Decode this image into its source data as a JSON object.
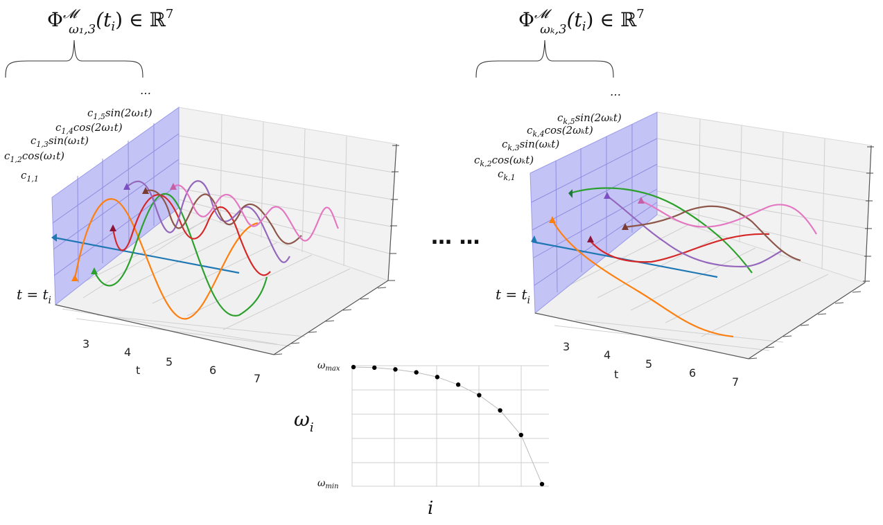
{
  "panels": [
    {
      "id": "left",
      "header": "Φ^M_{ω1,3}(ti) ∈ ℝ^7",
      "header_main": "Φ",
      "header_sup": "𝓜",
      "header_sub": "ω₁,3",
      "header_arg": "(t",
      "header_arg_sub": "i",
      "header_tail": ") ∈ ℝ",
      "header_tail_sup": "7",
      "ellipsis": "…",
      "basis_labels": [
        {
          "c": "c",
          "sub": "1,5",
          "fn": "sin(2ω₁t)"
        },
        {
          "c": "c",
          "sub": "1,4",
          "fn": "cos(2ω₁t)"
        },
        {
          "c": "c",
          "sub": "1,3",
          "fn": "sin(ω₁t)"
        },
        {
          "c": "c",
          "sub": "1,2",
          "fn": "cos(ω₁t)"
        },
        {
          "c": "c",
          "sub": "1,1",
          "fn": ""
        }
      ],
      "t_label_main": "t = t",
      "t_label_sub": "i",
      "x_ticks": [
        "3",
        "4",
        "5",
        "6",
        "7"
      ],
      "x_axis_label": "t"
    },
    {
      "id": "right",
      "header_main": "Φ",
      "header_sup": "𝓜",
      "header_sub": "ωₖ,3",
      "header_arg": "(t",
      "header_arg_sub": "i",
      "header_tail": ") ∈ ℝ",
      "header_tail_sup": "7",
      "ellipsis": "…",
      "basis_labels": [
        {
          "c": "c",
          "sub": "k,5",
          "fn": "sin(2ωₖt)"
        },
        {
          "c": "c",
          "sub": "k,4",
          "fn": "cos(2ωₖt)"
        },
        {
          "c": "c",
          "sub": "k,3",
          "fn": "sin(ωₖt)"
        },
        {
          "c": "c",
          "sub": "k,2",
          "fn": "cos(ωₖt)"
        },
        {
          "c": "c",
          "sub": "k,1",
          "fn": ""
        }
      ],
      "t_label_main": "t = t",
      "t_label_sub": "i",
      "x_ticks": [
        "3",
        "4",
        "5",
        "6",
        "7"
      ],
      "x_axis_label": "t"
    }
  ],
  "middle_ellipsis": "… …",
  "freq_plot": {
    "y_label": "ω",
    "y_label_sub": "i",
    "x_label": "i",
    "y_top_label": "ω",
    "y_top_sub": "max",
    "y_bottom_label": "ω",
    "y_bottom_sub": "min",
    "values": [
      1.0,
      0.995,
      0.98,
      0.955,
      0.915,
      0.85,
      0.76,
      0.63,
      0.42,
      0.0
    ]
  },
  "colors": {
    "blue": "#1f77b4",
    "orange": "#ff7f0e",
    "green": "#2ca02c",
    "red": "#d62728",
    "purple": "#9467bd",
    "brown": "#8c564b",
    "pink": "#e377c2",
    "pane": "#b9b9f4"
  }
}
